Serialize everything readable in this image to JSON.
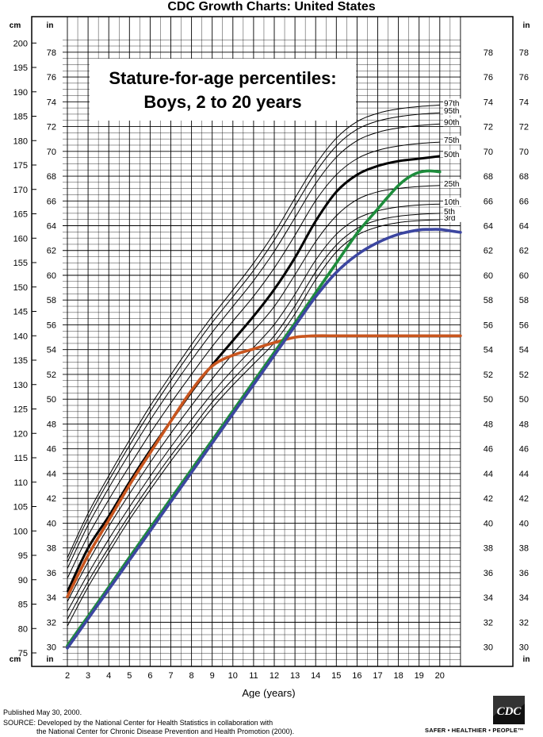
{
  "header": {
    "title": "CDC Growth Charts: United States"
  },
  "chart_data": {
    "type": "line",
    "title": "Stature-for-age percentiles:",
    "subtitle": "Boys, 2 to 20 years",
    "xlabel": "Age (years)",
    "y_unit_left": "cm",
    "y_unit_right": "in",
    "xlim": [
      2,
      21
    ],
    "ylim_cm": [
      73,
      201
    ],
    "x_ticks": [
      2,
      3,
      4,
      5,
      6,
      7,
      8,
      9,
      10,
      11,
      12,
      13,
      14,
      15,
      16,
      17,
      18,
      19,
      20
    ],
    "cm_ticks": [
      75,
      80,
      85,
      90,
      95,
      100,
      105,
      110,
      115,
      120,
      125,
      130,
      135,
      140,
      145,
      150,
      155,
      160,
      165,
      170,
      175,
      180,
      185,
      190,
      195,
      200
    ],
    "in_ticks": [
      30,
      32,
      34,
      36,
      38,
      40,
      42,
      44,
      46,
      48,
      50,
      52,
      54,
      56,
      58,
      60,
      62,
      64,
      66,
      68,
      70,
      72,
      74,
      76,
      78
    ],
    "grid": true,
    "percentile_series": [
      {
        "name": "3rd",
        "label": "3rd",
        "x": [
          2,
          3,
          4,
          5,
          6,
          7,
          8,
          9,
          10,
          11,
          12,
          13,
          14,
          15,
          16,
          17,
          18,
          19,
          20
        ],
        "y_cm": [
          80.5,
          88.5,
          95.5,
          102.3,
          108.4,
          114.3,
          119.8,
          125.2,
          129.9,
          134.2,
          138.6,
          144.5,
          151.5,
          157.2,
          160.6,
          162.3,
          163.2,
          163.6,
          163.8
        ]
      },
      {
        "name": "5th",
        "label": "5th",
        "x": [
          2,
          3,
          4,
          5,
          6,
          7,
          8,
          9,
          10,
          11,
          12,
          13,
          14,
          15,
          16,
          17,
          18,
          19,
          20
        ],
        "y_cm": [
          81.9,
          89.6,
          96.6,
          103.3,
          109.5,
          115.4,
          120.9,
          126.4,
          131.1,
          135.5,
          140.0,
          146.1,
          153.1,
          158.6,
          162.0,
          163.7,
          164.5,
          164.9,
          165.1
        ]
      },
      {
        "name": "10th",
        "label": "10th",
        "x": [
          2,
          3,
          4,
          5,
          6,
          7,
          8,
          9,
          10,
          11,
          12,
          13,
          14,
          15,
          16,
          17,
          18,
          19,
          20
        ],
        "y_cm": [
          83.5,
          91.2,
          98.3,
          104.9,
          111.2,
          117.2,
          122.8,
          128.2,
          133.1,
          137.6,
          142.3,
          148.5,
          155.5,
          160.8,
          164.0,
          165.6,
          166.4,
          166.8,
          167.0
        ]
      },
      {
        "name": "25th",
        "label": "25th",
        "x": [
          2,
          3,
          4,
          5,
          6,
          7,
          8,
          9,
          10,
          11,
          12,
          13,
          14,
          15,
          16,
          17,
          18,
          19,
          20
        ],
        "y_cm": [
          85.5,
          93.6,
          100.9,
          107.6,
          114.0,
          120.0,
          125.7,
          131.2,
          136.3,
          141.0,
          146.0,
          152.5,
          159.3,
          164.6,
          167.9,
          169.5,
          170.2,
          170.6,
          170.8
        ]
      },
      {
        "name": "50th",
        "label": "50th",
        "x": [
          2,
          3,
          4,
          5,
          6,
          7,
          8,
          9,
          10,
          11,
          12,
          13,
          14,
          15,
          16,
          17,
          18,
          19,
          20
        ],
        "y_cm": [
          87.5,
          96.5,
          103.0,
          110.0,
          116.5,
          122.5,
          128.5,
          134.0,
          139.0,
          144.0,
          149.5,
          156.0,
          163.5,
          169.5,
          173.0,
          174.8,
          175.8,
          176.3,
          176.8
        ]
      },
      {
        "name": "75th",
        "label": "75th",
        "x": [
          2,
          3,
          4,
          5,
          6,
          7,
          8,
          9,
          10,
          11,
          12,
          13,
          14,
          15,
          16,
          17,
          18,
          19,
          20
        ],
        "y_cm": [
          90.3,
          99.0,
          106.4,
          113.3,
          120.0,
          126.2,
          132.1,
          137.8,
          143.0,
          148.1,
          153.9,
          160.6,
          167.7,
          173.0,
          176.3,
          178.0,
          178.9,
          179.4,
          179.7
        ]
      },
      {
        "name": "90th",
        "label": "90th",
        "x": [
          2,
          3,
          4,
          5,
          6,
          7,
          8,
          9,
          10,
          11,
          12,
          13,
          14,
          15,
          16,
          17,
          18,
          19,
          20
        ],
        "y_cm": [
          92.3,
          101.2,
          108.8,
          115.9,
          122.7,
          129.0,
          135.0,
          140.7,
          146.0,
          151.3,
          157.3,
          164.2,
          171.2,
          176.6,
          180.0,
          181.7,
          182.6,
          183.1,
          183.4
        ]
      },
      {
        "name": "95th",
        "label": "95th",
        "x": [
          2,
          3,
          4,
          5,
          6,
          7,
          8,
          9,
          10,
          11,
          12,
          13,
          14,
          15,
          16,
          17,
          18,
          19,
          20
        ],
        "y_cm": [
          93.6,
          102.6,
          110.3,
          117.5,
          124.4,
          130.8,
          136.9,
          142.7,
          148.0,
          153.4,
          159.6,
          166.6,
          173.5,
          178.9,
          182.3,
          184.0,
          184.9,
          185.4,
          185.7
        ]
      },
      {
        "name": "97th",
        "label": "97th",
        "x": [
          2,
          3,
          4,
          5,
          6,
          7,
          8,
          9,
          10,
          11,
          12,
          13,
          14,
          15,
          16,
          17,
          18,
          19,
          20
        ],
        "y_cm": [
          94.5,
          103.6,
          111.3,
          118.6,
          125.6,
          132.0,
          138.2,
          144.0,
          149.4,
          154.9,
          161.1,
          168.2,
          175.1,
          180.5,
          183.9,
          185.6,
          186.5,
          187.0,
          187.3
        ]
      }
    ],
    "highlight_series": [
      {
        "color": "#c8551e",
        "x": [
          2,
          3,
          4,
          5,
          6,
          7,
          8,
          9,
          10,
          11,
          12,
          13,
          13.5,
          14,
          15,
          16,
          17,
          18,
          19,
          20,
          21
        ],
        "y_cm": [
          86.5,
          95.0,
          102.2,
          109.4,
          116.0,
          122.5,
          128.8,
          133.8,
          136.0,
          137.3,
          138.6,
          139.7,
          139.9,
          140.0,
          140.0,
          140.0,
          140.0,
          140.0,
          140.0,
          140.0,
          140.0
        ]
      },
      {
        "color": "#1e8c3c",
        "x": [
          2,
          3,
          4,
          5,
          6,
          7,
          8,
          9,
          10,
          11,
          12,
          13,
          14,
          15,
          16,
          17,
          17.5,
          18,
          18.5,
          19,
          19.5,
          20
        ],
        "y_cm": [
          76.5,
          82.5,
          88.5,
          94.6,
          100.6,
          106.6,
          112.6,
          118.6,
          124.6,
          130.6,
          136.6,
          142.6,
          148.8,
          154.9,
          161.0,
          166.0,
          168.5,
          170.8,
          172.5,
          173.5,
          173.8,
          173.6
        ]
      },
      {
        "color": "#3c46a0",
        "x": [
          2,
          3,
          4,
          5,
          6,
          7,
          8,
          9,
          10,
          11,
          12,
          13,
          14,
          15,
          16,
          17,
          18,
          19,
          19.5,
          20,
          20.5,
          21
        ],
        "y_cm": [
          76.0,
          82.0,
          88.0,
          94.0,
          100.0,
          106.0,
          112.0,
          118.0,
          124.0,
          130.0,
          136.0,
          142.0,
          148.0,
          153.0,
          156.6,
          159.1,
          160.8,
          161.7,
          161.8,
          161.8,
          161.5,
          161.2
        ]
      }
    ]
  },
  "footer": {
    "published": "Published May 30, 2000.",
    "source_line1": "SOURCE: Developed by the National Center for Health Statistics in collaboration with",
    "source_line2": "the National Center for Chronic Disease Prevention and Health Promotion (2000).",
    "logo_text": "CDC",
    "tagline": "SAFER • HEALTHIER • PEOPLE™"
  }
}
